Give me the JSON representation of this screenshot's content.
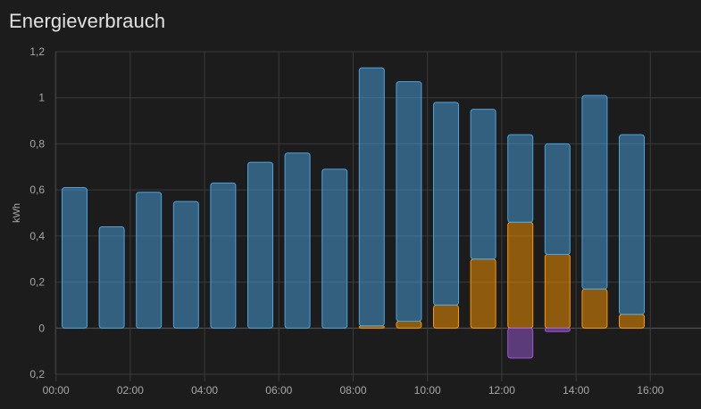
{
  "card": {
    "title": "Energieverbrauch"
  },
  "colors": {
    "background": "#1c1c1c",
    "grid": "#3a3a3a",
    "zero_line": "#5a5a5a",
    "grid_consumption": "#4aa3df",
    "solar": "#ff9800",
    "battery_out": "#9b59d6"
  },
  "chart_data": {
    "type": "bar",
    "title": "Energieverbrauch",
    "xlabel": "",
    "ylabel": "kWh",
    "ylim": [
      -0.2,
      1.2
    ],
    "y_ticks": [
      -0.2,
      0,
      0.2,
      0.4,
      0.6,
      0.8,
      1,
      1.2
    ],
    "y_tick_labels": [
      "0,2",
      "0",
      "0,2",
      "0,4",
      "0,6",
      "0,8",
      "1",
      "1,2"
    ],
    "x_ticks": [
      "00:00",
      "02:00",
      "04:00",
      "06:00",
      "08:00",
      "10:00",
      "12:00",
      "14:00",
      "16:00"
    ],
    "grid": true,
    "stacked": true,
    "categories": [
      "00:00",
      "01:00",
      "02:00",
      "03:00",
      "04:00",
      "05:00",
      "06:00",
      "07:00",
      "08:00",
      "09:00",
      "10:00",
      "11:00",
      "12:00",
      "13:00",
      "14:00",
      "15:00"
    ],
    "series": [
      {
        "color_key": "solar",
        "values": [
          0,
          0,
          0,
          0,
          0,
          0,
          0,
          0,
          0.01,
          0.03,
          0.1,
          0.3,
          0.46,
          0.32,
          0.17,
          0.06
        ]
      },
      {
        "color_key": "grid_consumption",
        "values": [
          0.61,
          0.44,
          0.59,
          0.55,
          0.63,
          0.72,
          0.76,
          0.69,
          1.12,
          1.04,
          0.88,
          0.65,
          0.38,
          0.48,
          0.84,
          0.78
        ]
      },
      {
        "color_key": "battery_out",
        "values": [
          0,
          0,
          0,
          0,
          0,
          0,
          0,
          0,
          0,
          0,
          0,
          0,
          -0.13,
          -0.015,
          0,
          0
        ]
      }
    ]
  }
}
